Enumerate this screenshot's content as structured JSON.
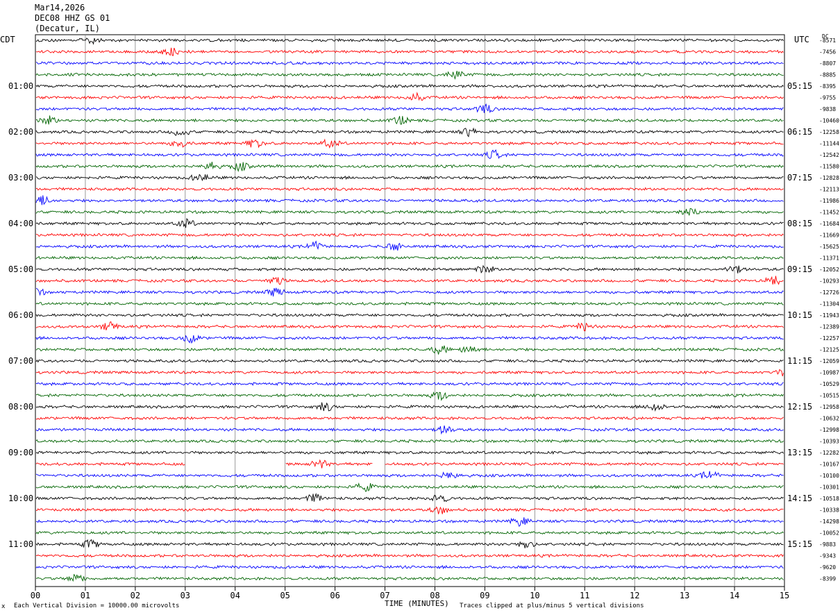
{
  "header": {
    "date": "Mar14,2026",
    "station": "DEC08 HHZ GS 01",
    "location": "(Decatur, IL)"
  },
  "labels": {
    "left_tz": "CDT",
    "right_tz": "UTC",
    "right_corner": "DC"
  },
  "chart_data": {
    "type": "line",
    "title": "DEC08 HHZ GS 01",
    "xlabel": "TIME (MINUTES)",
    "xlim": [
      0,
      15
    ],
    "x_ticks": [
      "00",
      "01",
      "02",
      "03",
      "04",
      "05",
      "06",
      "07",
      "08",
      "09",
      "10",
      "11",
      "12",
      "13",
      "14",
      "15"
    ],
    "left_hour_labels": [
      "01:00",
      "02:00",
      "03:00",
      "04:00",
      "05:00",
      "06:00",
      "07:00",
      "08:00",
      "09:00",
      "10:00",
      "11:00"
    ],
    "right_hour_labels": [
      "05:15",
      "06:15",
      "07:15",
      "08:15",
      "09:15",
      "10:15",
      "11:15",
      "12:15",
      "13:15",
      "14:15",
      "15:15"
    ],
    "trace_colors": [
      "#000000",
      "#ff0000",
      "#0000ff",
      "#006400"
    ],
    "trace_offsets": [
      "-8571",
      "-7456",
      "-8807",
      "-8885",
      "-8395",
      "-9755",
      "-9838",
      "-10460",
      "-12258",
      "-11144",
      "-12542",
      "-11580",
      "-12828",
      "-12113",
      "-11986",
      "-11452",
      "-11684",
      "-11669",
      "-15625",
      "-11371",
      "-12052",
      "-10293",
      "-12726",
      "-11304",
      "-11943",
      "-12389",
      "-12257",
      "-12125",
      "-12059",
      "-10987",
      "-10529",
      "-10515",
      "-12958",
      "-10632",
      "-12998",
      "-10393",
      "-12282",
      "-10167",
      "-10100",
      "-10301",
      "-10518",
      "-10338",
      "-14298",
      "-10052",
      "-9883",
      "-9343",
      "-9620",
      "-8399"
    ],
    "gap": {
      "trace_index": 37,
      "from_minute": 3.0,
      "to_minute": 5.0
    },
    "gap2": {
      "trace_index": 37,
      "from_minute": 6.75,
      "to_minute": 7.0
    },
    "event_minutes": [
      [
        1.1
      ],
      [
        2.7
      ],
      [],
      [
        8.4
      ],
      [],
      [
        7.6
      ],
      [
        9.0
      ],
      [
        0.25,
        7.3
      ],
      [
        2.9,
        8.7
      ],
      [
        2.9,
        4.4,
        5.9
      ],
      [
        9.2
      ],
      [
        3.5,
        4.1
      ],
      [
        3.3
      ],
      [],
      [
        0.15
      ],
      [
        13.1
      ],
      [
        3.0
      ],
      [],
      [
        5.6,
        7.2
      ],
      [],
      [
        9.0,
        14.0
      ],
      [
        4.8,
        14.8
      ],
      [
        0.0,
        4.8
      ],
      [],
      [],
      [
        1.5,
        11.0
      ],
      [
        3.1
      ],
      [
        8.1,
        8.7
      ],
      [],
      [
        15.0
      ],
      [],
      [
        8.1
      ],
      [
        5.8,
        12.4
      ],
      [],
      [
        8.2
      ],
      [],
      [],
      [
        5.7
      ],
      [
        8.3,
        13.5
      ],
      [
        6.6
      ],
      [
        5.6,
        8.1
      ],
      [
        8.1
      ],
      [
        9.7
      ],
      [],
      [
        1.1,
        9.8
      ],
      [],
      [],
      [
        0.8
      ]
    ]
  },
  "footer": {
    "scale_note": "Each Vertical Division = 10000.00 microvolts",
    "clip_note": "Traces clipped at plus/minus 5 vertical divisions",
    "marker": "x"
  }
}
